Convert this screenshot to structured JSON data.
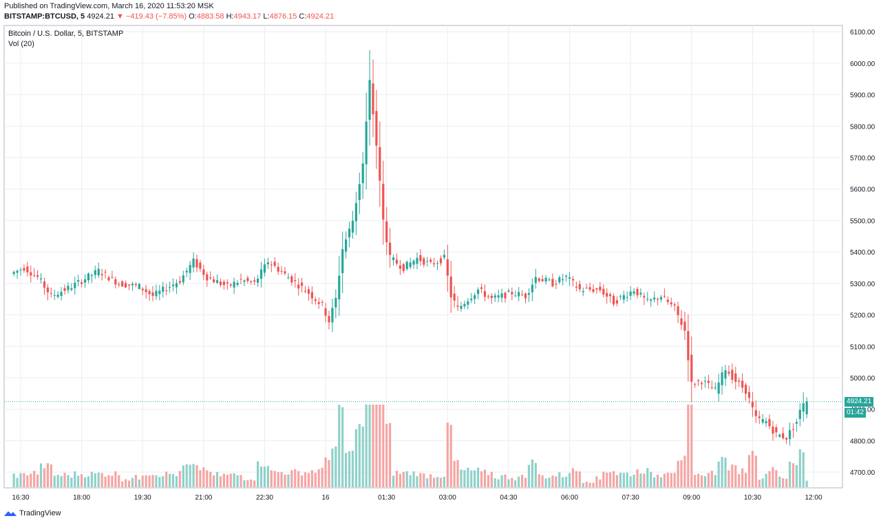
{
  "header": {
    "published": "Published on TradingView.com, March 16, 2020 11:53:20 MSK",
    "symbol": "BITSTAMP:BTCUSD, 5",
    "last": "4924.21",
    "change": "−419.43 (−7.85%)",
    "o_label": "O:",
    "o": "4883.58",
    "h_label": "H:",
    "h": "4943.17",
    "l_label": "L:",
    "l": "4876.15",
    "c_label": "C:",
    "c": "4924.21"
  },
  "pane": {
    "title": "Bitcoin / U.S. Dollar, 5, BITSTAMP",
    "volume_title": "Vol (20)"
  },
  "price_tags": {
    "last_price": "4924.21",
    "countdown": "01:42"
  },
  "footer": {
    "brand": "TradingView"
  },
  "colors": {
    "up": "#26a69a",
    "down": "#ef5350",
    "vol_up": "#8fd1c9",
    "vol_down": "#f5a5a3",
    "grid": "#e9edf2"
  },
  "chart_data": {
    "type": "candlestick",
    "y_axis": {
      "range": [
        4650,
        6120
      ],
      "ticks": [
        4700,
        4800,
        4900,
        5000,
        5100,
        5200,
        5300,
        5400,
        5500,
        5600,
        5700,
        5800,
        5900,
        6000,
        6100
      ],
      "tick_labels": [
        "4700.00",
        "4800.00",
        "4900.00",
        "5000.00",
        "5100.00",
        "5200.00",
        "5300.00",
        "5400.00",
        "5500.00",
        "5600.00",
        "5700.00",
        "5800.00",
        "5900.00",
        "6000.00",
        "6100.00"
      ]
    },
    "x_axis": {
      "labels": [
        "16:30",
        "18:00",
        "19:30",
        "21:00",
        "22:30",
        "16",
        "01:30",
        "03:00",
        "04:30",
        "06:00",
        "07:30",
        "09:00",
        "10:30",
        "12:00"
      ]
    },
    "last_price": 4924.21,
    "price_keypoints": [
      {
        "t": "16:20",
        "p": 5330
      },
      {
        "t": "16:40",
        "p": 5350
      },
      {
        "t": "17:00",
        "p": 5320
      },
      {
        "t": "17:20",
        "p": 5260
      },
      {
        "t": "17:50",
        "p": 5290
      },
      {
        "t": "18:30",
        "p": 5340
      },
      {
        "t": "19:00",
        "p": 5300
      },
      {
        "t": "19:30",
        "p": 5290
      },
      {
        "t": "19:50",
        "p": 5260
      },
      {
        "t": "20:30",
        "p": 5310
      },
      {
        "t": "20:50",
        "p": 5370
      },
      {
        "t": "21:10",
        "p": 5320
      },
      {
        "t": "21:40",
        "p": 5290
      },
      {
        "t": "22:00",
        "p": 5310
      },
      {
        "t": "22:20",
        "p": 5300
      },
      {
        "t": "22:40",
        "p": 5370
      },
      {
        "t": "23:10",
        "p": 5320
      },
      {
        "t": "23:40",
        "p": 5270
      },
      {
        "t": "00:00",
        "p": 5230
      },
      {
        "t": "00:10",
        "p": 5180
      },
      {
        "t": "00:20",
        "p": 5250
      },
      {
        "t": "00:30",
        "p": 5410
      },
      {
        "t": "00:45",
        "p": 5500
      },
      {
        "t": "01:00",
        "p": 5680
      },
      {
        "t": "01:10",
        "p": 5940
      },
      {
        "t": "01:20",
        "p": 5740
      },
      {
        "t": "01:30",
        "p": 5500
      },
      {
        "t": "01:40",
        "p": 5380
      },
      {
        "t": "02:00",
        "p": 5350
      },
      {
        "t": "02:20",
        "p": 5380
      },
      {
        "t": "02:40",
        "p": 5360
      },
      {
        "t": "03:00",
        "p": 5380
      },
      {
        "t": "03:10",
        "p": 5260
      },
      {
        "t": "03:20",
        "p": 5220
      },
      {
        "t": "03:50",
        "p": 5280
      },
      {
        "t": "04:10",
        "p": 5250
      },
      {
        "t": "04:40",
        "p": 5270
      },
      {
        "t": "05:00",
        "p": 5260
      },
      {
        "t": "05:15",
        "p": 5320
      },
      {
        "t": "05:40",
        "p": 5300
      },
      {
        "t": "06:00",
        "p": 5320
      },
      {
        "t": "06:20",
        "p": 5280
      },
      {
        "t": "06:50",
        "p": 5280
      },
      {
        "t": "07:10",
        "p": 5240
      },
      {
        "t": "07:40",
        "p": 5280
      },
      {
        "t": "08:00",
        "p": 5240
      },
      {
        "t": "08:20",
        "p": 5260
      },
      {
        "t": "08:40",
        "p": 5220
      },
      {
        "t": "08:55",
        "p": 5150
      },
      {
        "t": "09:05",
        "p": 4980
      },
      {
        "t": "09:20",
        "p": 4990
      },
      {
        "t": "09:40",
        "p": 4960
      },
      {
        "t": "09:55",
        "p": 5030
      },
      {
        "t": "10:10",
        "p": 4990
      },
      {
        "t": "10:25",
        "p": 4960
      },
      {
        "t": "10:40",
        "p": 4870
      },
      {
        "t": "10:55",
        "p": 4860
      },
      {
        "t": "11:10",
        "p": 4820
      },
      {
        "t": "11:25",
        "p": 4810
      },
      {
        "t": "11:40",
        "p": 4860
      },
      {
        "t": "11:50",
        "p": 4924.21
      }
    ],
    "volume_note": "Volume bars shown for each 5-minute candle, peaks near 22:30, 01:00–01:30, 03:00 and 09:00–11:00"
  }
}
